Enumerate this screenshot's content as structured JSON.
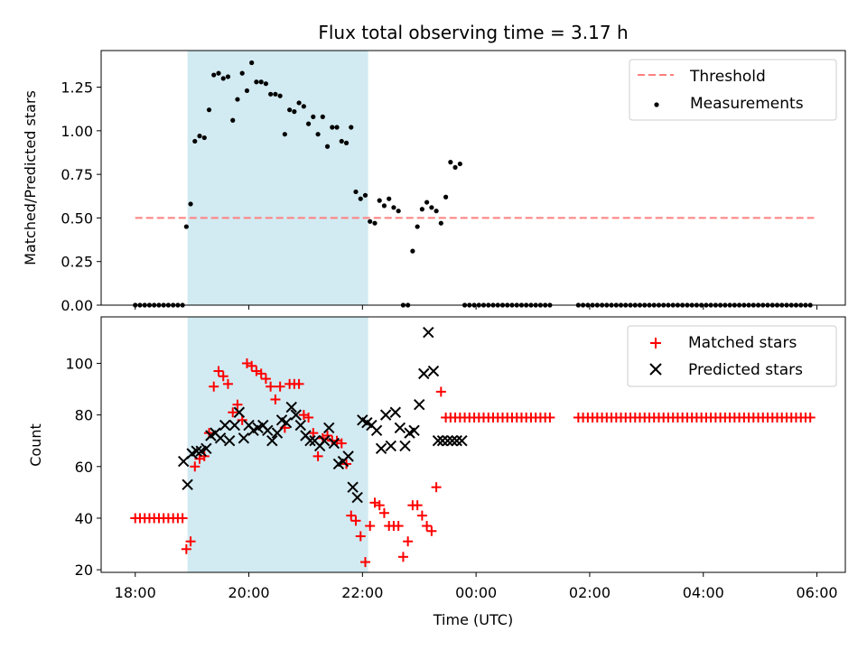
{
  "chart_data": [
    {
      "type": "scatter",
      "title": "Flux total observing time = 3.17 h",
      "ylabel": "Matched/Predicted stars",
      "xlim": [
        -0.6,
        12.5
      ],
      "ylim": [
        0.0,
        1.46
      ],
      "yticks": [
        0.0,
        0.25,
        0.5,
        0.75,
        1.0,
        1.25
      ],
      "ytick_labels": [
        "0.00",
        "0.25",
        "0.50",
        "0.75",
        "1.00",
        "1.25"
      ],
      "shaded_interval": [
        0.92,
        4.1
      ],
      "threshold": {
        "label": "Threshold",
        "value": 0.5,
        "x": [
          0.0,
          11.95
        ],
        "color": "#ff7f7f"
      },
      "measurements": {
        "label": "Measurements",
        "color": "#000000",
        "x": [
          0.0,
          0.083,
          0.167,
          0.25,
          0.333,
          0.417,
          0.5,
          0.583,
          0.667,
          0.75,
          0.833,
          0.9,
          0.975,
          1.05,
          1.133,
          1.217,
          1.3,
          1.383,
          1.467,
          1.55,
          1.633,
          1.717,
          1.8,
          1.883,
          1.967,
          2.05,
          2.133,
          2.217,
          2.3,
          2.383,
          2.467,
          2.55,
          2.633,
          2.717,
          2.8,
          2.883,
          2.967,
          3.05,
          3.133,
          3.217,
          3.3,
          3.383,
          3.467,
          3.55,
          3.633,
          3.717,
          3.8,
          3.883,
          3.967,
          4.05,
          4.133,
          4.217,
          4.3,
          4.383,
          4.467,
          4.55,
          4.633,
          4.717,
          4.8,
          4.883,
          4.967,
          5.05,
          5.133,
          5.217,
          5.3,
          5.383,
          5.467,
          5.55,
          5.633,
          5.717,
          5.8,
          5.883,
          5.967,
          6.05,
          6.133,
          6.217,
          6.3,
          6.383,
          6.467,
          6.55,
          6.633,
          6.717,
          6.8,
          6.883,
          6.967,
          7.05,
          7.133,
          7.217,
          7.3,
          7.8,
          7.883,
          7.967,
          8.05,
          8.133,
          8.217,
          8.3,
          8.383,
          8.467,
          8.55,
          8.633,
          8.717,
          8.8,
          8.883,
          8.967,
          9.05,
          9.133,
          9.217,
          9.3,
          9.383,
          9.467,
          9.55,
          9.633,
          9.717,
          9.8,
          9.883,
          9.967,
          10.05,
          10.133,
          10.217,
          10.3,
          10.383,
          10.467,
          10.55,
          10.633,
          10.717,
          10.8,
          10.883,
          10.967,
          11.05,
          11.133,
          11.217,
          11.3,
          11.383,
          11.467,
          11.55,
          11.633,
          11.717,
          11.8,
          11.883
        ],
        "y": [
          0,
          0,
          0,
          0,
          0,
          0,
          0,
          0,
          0,
          0,
          0,
          0.45,
          0.58,
          0.94,
          0.97,
          0.96,
          1.12,
          1.32,
          1.33,
          1.3,
          1.31,
          1.06,
          1.18,
          1.33,
          1.23,
          1.39,
          1.28,
          1.28,
          1.27,
          1.21,
          1.21,
          1.2,
          0.98,
          1.12,
          1.11,
          1.16,
          1.14,
          1.04,
          1.08,
          0.98,
          1.08,
          0.91,
          1.02,
          1.02,
          0.94,
          0.93,
          1.02,
          0.65,
          0.61,
          0.63,
          0.48,
          0.47,
          0.6,
          0.57,
          0.61,
          0.56,
          0.54,
          0,
          0,
          0.31,
          0.45,
          0.55,
          0.59,
          0.56,
          0.54,
          0.47,
          0.62,
          0.82,
          0.79,
          0.81,
          0,
          0,
          0,
          0,
          0,
          0,
          0,
          0,
          0,
          0,
          0,
          0,
          0,
          0,
          0,
          0,
          0,
          0,
          0,
          0,
          0,
          0,
          0,
          0,
          0,
          0,
          0,
          0,
          0,
          0,
          0,
          0,
          0,
          0,
          0,
          0,
          0,
          0,
          0,
          0,
          0,
          0,
          0,
          0,
          0,
          0,
          0,
          0,
          0,
          0,
          0,
          0,
          0,
          0,
          0,
          0,
          0,
          0,
          0,
          0,
          0,
          0,
          0,
          0,
          0,
          0,
          0,
          0,
          0
        ]
      },
      "legend": [
        "Threshold",
        "Measurements"
      ],
      "legend_position": "upper right"
    },
    {
      "type": "scatter",
      "xlabel": "Time (UTC)",
      "ylabel": "Count",
      "xlim": [
        -0.6,
        12.5
      ],
      "ylim": [
        19,
        118
      ],
      "xticks": [
        0,
        2,
        4,
        6,
        8,
        10,
        12
      ],
      "xtick_labels": [
        "18:00",
        "20:00",
        "22:00",
        "00:00",
        "02:00",
        "04:00",
        "06:00"
      ],
      "yticks": [
        20,
        40,
        60,
        80,
        100
      ],
      "ytick_labels": [
        "20",
        "40",
        "60",
        "80",
        "100"
      ],
      "shaded_interval": [
        0.92,
        4.1
      ],
      "series": [
        {
          "name": "Matched stars",
          "marker": "plus",
          "color": "#ff0000",
          "x": [
            0.0,
            0.083,
            0.167,
            0.25,
            0.333,
            0.417,
            0.5,
            0.583,
            0.667,
            0.75,
            0.833,
            0.9,
            0.975,
            1.05,
            1.133,
            1.217,
            1.3,
            1.383,
            1.467,
            1.55,
            1.633,
            1.717,
            1.8,
            1.883,
            1.967,
            2.05,
            2.133,
            2.217,
            2.3,
            2.383,
            2.467,
            2.55,
            2.633,
            2.717,
            2.8,
            2.883,
            2.967,
            3.05,
            3.133,
            3.217,
            3.3,
            3.383,
            3.467,
            3.55,
            3.633,
            3.717,
            3.8,
            3.883,
            3.967,
            4.05,
            4.133,
            4.217,
            4.3,
            4.383,
            4.467,
            4.55,
            4.633,
            4.717,
            4.8,
            4.883,
            4.967,
            5.05,
            5.133,
            5.217,
            5.3,
            5.383,
            5.467,
            5.55,
            5.633,
            5.717,
            5.8,
            5.883,
            5.967,
            6.05,
            6.133,
            6.217,
            6.3,
            6.383,
            6.467,
            6.55,
            6.633,
            6.717,
            6.8,
            6.883,
            6.967,
            7.05,
            7.133,
            7.217,
            7.3,
            7.8,
            7.883,
            7.967,
            8.05,
            8.133,
            8.217,
            8.3,
            8.383,
            8.467,
            8.55,
            8.633,
            8.717,
            8.8,
            8.883,
            8.967,
            9.05,
            9.133,
            9.217,
            9.3,
            9.383,
            9.467,
            9.55,
            9.633,
            9.717,
            9.8,
            9.883,
            9.967,
            10.05,
            10.133,
            10.217,
            10.3,
            10.383,
            10.467,
            10.55,
            10.633,
            10.717,
            10.8,
            10.883,
            10.967,
            11.05,
            11.133,
            11.217,
            11.3,
            11.383,
            11.467,
            11.55,
            11.633,
            11.717,
            11.8,
            11.883
          ],
          "y": [
            40,
            40,
            40,
            40,
            40,
            40,
            40,
            40,
            40,
            40,
            40,
            28,
            31,
            60,
            63,
            64,
            73,
            91,
            97,
            95,
            92,
            81,
            84,
            78,
            100,
            99,
            97,
            96,
            94,
            91,
            86,
            91,
            75,
            92,
            92,
            92,
            80,
            79,
            73,
            64,
            71,
            72,
            70,
            70,
            69,
            61,
            41,
            39,
            33,
            23,
            37,
            46,
            45,
            42,
            37,
            37,
            37,
            25,
            31,
            45,
            45,
            41,
            37,
            35,
            52,
            89,
            79,
            79,
            79,
            79,
            79,
            79,
            79,
            79,
            79,
            79,
            79,
            79,
            79,
            79,
            79,
            79,
            79,
            79,
            79,
            79,
            79,
            79,
            79,
            79,
            79,
            79,
            79,
            79,
            79,
            79,
            79,
            79,
            79,
            79,
            79,
            79,
            79,
            79,
            79,
            79,
            79,
            79,
            79,
            79,
            79,
            79,
            79,
            79,
            79,
            79,
            79,
            79,
            79,
            79,
            79,
            79,
            79,
            79,
            79,
            79,
            79,
            79,
            79,
            79,
            79,
            79,
            79,
            79,
            79,
            79,
            79,
            79,
            79
          ]
        },
        {
          "name": "Predicted stars",
          "marker": "x",
          "color": "#000000",
          "x": [
            0.85,
            0.92,
            1.0,
            1.08,
            1.16,
            1.25,
            1.33,
            1.41,
            1.5,
            1.58,
            1.66,
            1.75,
            1.83,
            1.91,
            2.0,
            2.08,
            2.16,
            2.25,
            2.33,
            2.41,
            2.5,
            2.58,
            2.66,
            2.75,
            2.83,
            2.91,
            3.0,
            3.08,
            3.16,
            3.25,
            3.33,
            3.41,
            3.5,
            3.58,
            3.66,
            3.75,
            3.83,
            3.91,
            4.0,
            4.08,
            4.16,
            4.25,
            4.33,
            4.41,
            4.5,
            4.58,
            4.66,
            4.75,
            4.83,
            4.91,
            5.0,
            5.08,
            5.16,
            5.25,
            5.33,
            5.41,
            5.5,
            5.58,
            5.66,
            5.75
          ],
          "y": [
            62,
            53,
            65,
            66,
            66,
            67,
            72,
            73,
            71,
            76,
            70,
            76,
            81,
            71,
            76,
            74,
            75,
            76,
            74,
            70,
            73,
            78,
            77,
            83,
            80,
            76,
            72,
            70,
            70,
            68,
            70,
            75,
            69,
            61,
            62,
            64,
            52,
            48,
            78,
            77,
            76,
            74,
            67,
            80,
            68,
            81,
            75,
            68,
            73,
            74,
            84,
            96,
            112,
            97,
            70,
            70,
            70,
            70,
            70,
            70
          ]
        }
      ],
      "legend": [
        "Matched stars",
        "Predicted stars"
      ],
      "legend_position": "upper right"
    }
  ]
}
